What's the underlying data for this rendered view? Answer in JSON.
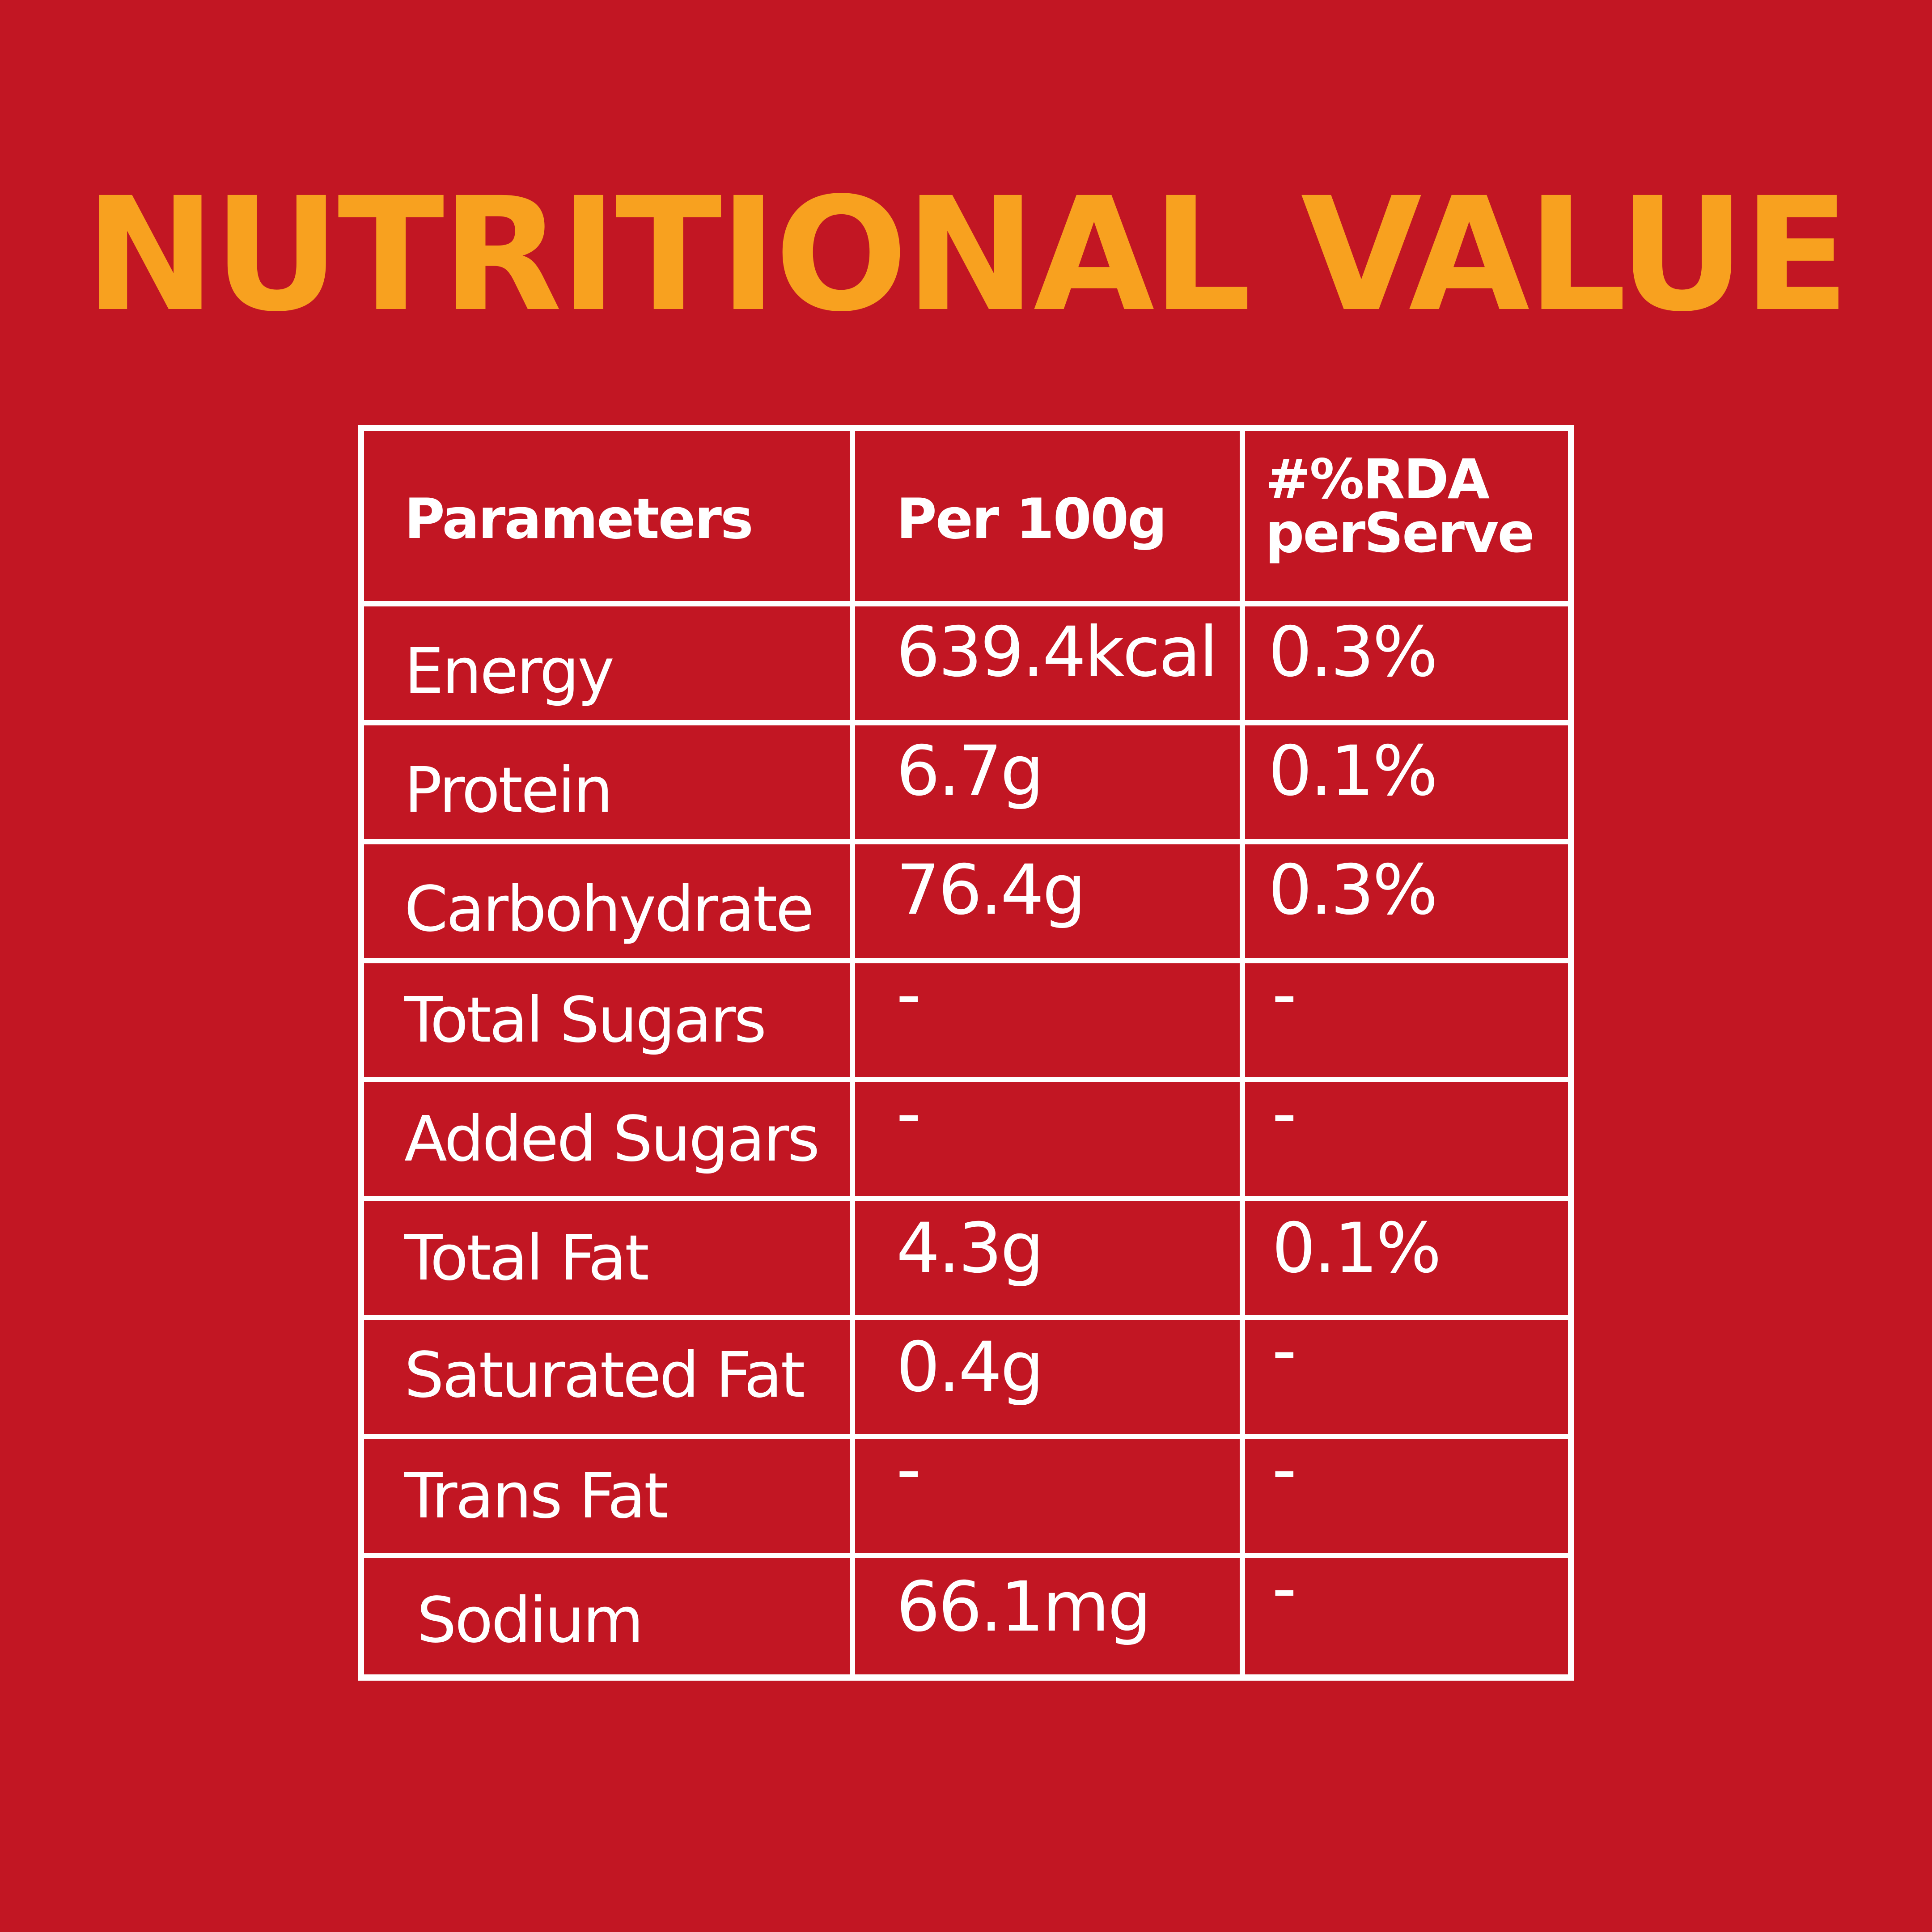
{
  "title": "NUTRITIONAL VALUE",
  "table": {
    "headers": {
      "parameters": "Parameters",
      "per_100g": "Per 100g",
      "rda_line1": "#%RDA",
      "rda_line2": "perServe"
    },
    "rows": [
      {
        "parameter": "Energy",
        "per_100g": "639.4kcal",
        "rda": "0.3%"
      },
      {
        "parameter": "Protein",
        "per_100g": "6.7g",
        "rda": "0.1%"
      },
      {
        "parameter": "Carbohydrate",
        "per_100g": "76.4g",
        "rda": "0.3%"
      },
      {
        "parameter": "Total Sugars",
        "per_100g": "-",
        "rda": "-"
      },
      {
        "parameter": "Added Sugars",
        "per_100g": "-",
        "rda": "-"
      },
      {
        "parameter": "Total Fat",
        "per_100g": "4.3g",
        "rda": "0.1%"
      },
      {
        "parameter": "Saturated Fat",
        "per_100g": "0.4g",
        "rda": "-"
      },
      {
        "parameter": "Trans Fat",
        "per_100g": "-",
        "rda": "-"
      },
      {
        "parameter": "Sodium",
        "per_100g": "66.1mg",
        "rda": "-"
      }
    ]
  },
  "colors": {
    "background": "#c21623",
    "title": "#f8a11f",
    "table_lines": "#ffffff",
    "text": "#ffffff"
  }
}
